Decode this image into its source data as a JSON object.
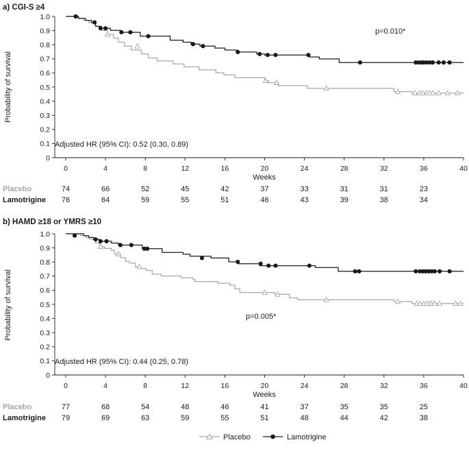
{
  "legend": {
    "placebo": "Placebo",
    "lamotrigine": "Lamotrigine"
  },
  "colors": {
    "placebo": "#a6a6a6",
    "lamotrigine": "#1a1a1a"
  },
  "chart_data": [
    {
      "type": "line",
      "title": "a) CGI-S ≥4",
      "xlabel": "Weeks",
      "ylabel": "Probability of survival",
      "xlim": [
        0,
        40
      ],
      "ylim": [
        0,
        1.0
      ],
      "xticks": [
        0,
        4,
        8,
        12,
        16,
        20,
        24,
        28,
        32,
        36,
        40
      ],
      "yticks": [
        0,
        0.1,
        0.2,
        0.3,
        0.4,
        0.5,
        0.6,
        0.7,
        0.8,
        0.9,
        1.0
      ],
      "ytick_labels": [
        "0",
        "0.1",
        "0.2",
        "0.3",
        "0.4",
        "0.5",
        "0.6",
        "0.7",
        "0.8",
        "0.9",
        "1.0"
      ],
      "annotation_p": "p=0.010*",
      "annotation_hr": "Adjusted HR (95% CI): 0.52 (0.30, 0.89)",
      "series": [
        {
          "name": "Placebo",
          "steps": [
            [
              0,
              1.0
            ],
            [
              1.2,
              0.986
            ],
            [
              1.8,
              0.972
            ],
            [
              2.3,
              0.958
            ],
            [
              3.0,
              0.93
            ],
            [
              3.6,
              0.902
            ],
            [
              4.2,
              0.874
            ],
            [
              4.8,
              0.846
            ],
            [
              5.3,
              0.818
            ],
            [
              5.9,
              0.79
            ],
            [
              6.6,
              0.762
            ],
            [
              7.6,
              0.734
            ],
            [
              8.3,
              0.706
            ],
            [
              9.2,
              0.685
            ],
            [
              10.8,
              0.664
            ],
            [
              11.9,
              0.643
            ],
            [
              13.4,
              0.622
            ],
            [
              15.1,
              0.601
            ],
            [
              15.9,
              0.587
            ],
            [
              17.0,
              0.566
            ],
            [
              20.0,
              0.545
            ],
            [
              20.4,
              0.531
            ],
            [
              21.4,
              0.51
            ],
            [
              22.4,
              0.51
            ],
            [
              24.3,
              0.491
            ],
            [
              25.4,
              0.491
            ],
            [
              33.0,
              0.468
            ],
            [
              34.8,
              0.458
            ],
            [
              40.0,
              0.458
            ]
          ],
          "censored": [
            [
              4.2,
              0.874
            ],
            [
              7.2,
              0.79
            ],
            [
              20.1,
              0.545
            ],
            [
              21.2,
              0.531
            ],
            [
              26.2,
              0.491
            ],
            [
              33.4,
              0.468
            ],
            [
              35.1,
              0.458
            ],
            [
              35.6,
              0.458
            ],
            [
              35.9,
              0.458
            ],
            [
              36.3,
              0.458
            ],
            [
              36.6,
              0.458
            ],
            [
              36.9,
              0.458
            ],
            [
              37.5,
              0.458
            ],
            [
              38.4,
              0.458
            ],
            [
              39.4,
              0.458
            ]
          ]
        },
        {
          "name": "Lamotrigine",
          "steps": [
            [
              0,
              1.0
            ],
            [
              1.1,
              1.0
            ],
            [
              1.3,
              0.986
            ],
            [
              2.0,
              0.972
            ],
            [
              2.6,
              0.958
            ],
            [
              3.0,
              0.93
            ],
            [
              3.5,
              0.916
            ],
            [
              4.5,
              0.902
            ],
            [
              5.5,
              0.888
            ],
            [
              7.5,
              0.86
            ],
            [
              10.5,
              0.832
            ],
            [
              11.8,
              0.818
            ],
            [
              12.6,
              0.804
            ],
            [
              13.5,
              0.79
            ],
            [
              15.0,
              0.776
            ],
            [
              16.0,
              0.762
            ],
            [
              17.2,
              0.748
            ],
            [
              19.2,
              0.734
            ],
            [
              20.0,
              0.727
            ],
            [
              24.5,
              0.713
            ],
            [
              25.5,
              0.699
            ],
            [
              27.5,
              0.674
            ],
            [
              40.0,
              0.674
            ]
          ],
          "censored": [
            [
              1.0,
              1.0
            ],
            [
              2.9,
              0.958
            ],
            [
              3.5,
              0.916
            ],
            [
              4.0,
              0.916
            ],
            [
              5.6,
              0.888
            ],
            [
              6.5,
              0.888
            ],
            [
              8.3,
              0.86
            ],
            [
              12.8,
              0.804
            ],
            [
              13.8,
              0.79
            ],
            [
              17.3,
              0.748
            ],
            [
              19.5,
              0.734
            ],
            [
              20.3,
              0.727
            ],
            [
              21.1,
              0.727
            ],
            [
              24.4,
              0.727
            ],
            [
              29.6,
              0.674
            ],
            [
              35.2,
              0.674
            ],
            [
              35.5,
              0.674
            ],
            [
              35.8,
              0.674
            ],
            [
              36.0,
              0.674
            ],
            [
              36.3,
              0.674
            ],
            [
              36.6,
              0.674
            ],
            [
              36.9,
              0.674
            ],
            [
              37.5,
              0.674
            ],
            [
              38.0,
              0.674
            ],
            [
              38.6,
              0.674
            ]
          ]
        }
      ],
      "risk_table": {
        "times": [
          0,
          4,
          8,
          12,
          16,
          20,
          24,
          28,
          32,
          36
        ],
        "rows": [
          {
            "label": "Placebo",
            "values": [
              "74",
              "66",
              "52",
              "45",
              "42",
              "37",
              "33",
              "31",
              "31",
              "23"
            ]
          },
          {
            "label": "Lamotrigine",
            "values": [
              "76",
              "64",
              "59",
              "55",
              "51",
              "46",
              "43",
              "39",
              "38",
              "34"
            ]
          }
        ]
      }
    },
    {
      "type": "line",
      "title": "b) HAMD ≥18 or YMRS ≥10",
      "xlabel": "Weeks",
      "ylabel": "Probability of survival",
      "xlim": [
        0,
        40
      ],
      "ylim": [
        0,
        1.0
      ],
      "xticks": [
        0,
        4,
        8,
        12,
        16,
        20,
        24,
        28,
        32,
        36,
        40
      ],
      "yticks": [
        0,
        0.1,
        0.2,
        0.3,
        0.4,
        0.5,
        0.6,
        0.7,
        0.8,
        0.9,
        1.0
      ],
      "ytick_labels": [
        "0",
        "0.1",
        "0.2",
        "0.3",
        "0.4",
        "0.5",
        "0.6",
        "0.7",
        "0.8",
        "0.9",
        "1.0"
      ],
      "annotation_p": "p=0.005*",
      "annotation_hr": "Adjusted HR (95% CI): 0.44 (0.25, 0.78)",
      "series": [
        {
          "name": "Placebo",
          "steps": [
            [
              0,
              1.0
            ],
            [
              1.5,
              0.987
            ],
            [
              2.0,
              0.974
            ],
            [
              2.4,
              0.961
            ],
            [
              3.0,
              0.935
            ],
            [
              3.4,
              0.909
            ],
            [
              3.9,
              0.896
            ],
            [
              4.6,
              0.883
            ],
            [
              4.9,
              0.857
            ],
            [
              5.5,
              0.831
            ],
            [
              6.0,
              0.805
            ],
            [
              6.4,
              0.792
            ],
            [
              7.0,
              0.766
            ],
            [
              7.5,
              0.753
            ],
            [
              8.1,
              0.74
            ],
            [
              8.7,
              0.714
            ],
            [
              9.6,
              0.701
            ],
            [
              11.6,
              0.688
            ],
            [
              12.8,
              0.675
            ],
            [
              13.0,
              0.662
            ],
            [
              15.3,
              0.649
            ],
            [
              16.5,
              0.636
            ],
            [
              17.0,
              0.61
            ],
            [
              17.5,
              0.584
            ],
            [
              21.0,
              0.571
            ],
            [
              22.5,
              0.546
            ],
            [
              23.3,
              0.533
            ],
            [
              25.0,
              0.533
            ],
            [
              33.0,
              0.52
            ],
            [
              34.8,
              0.506
            ],
            [
              40.0,
              0.506
            ]
          ],
          "censored": [
            [
              3.5,
              0.909
            ],
            [
              5.3,
              0.857
            ],
            [
              7.4,
              0.766
            ],
            [
              20.0,
              0.584
            ],
            [
              21.3,
              0.571
            ],
            [
              26.2,
              0.533
            ],
            [
              33.4,
              0.52
            ],
            [
              35.3,
              0.506
            ],
            [
              35.6,
              0.506
            ],
            [
              36.0,
              0.506
            ],
            [
              36.3,
              0.506
            ],
            [
              36.6,
              0.506
            ],
            [
              36.8,
              0.506
            ],
            [
              37.1,
              0.506
            ],
            [
              37.6,
              0.506
            ],
            [
              39.2,
              0.506
            ],
            [
              39.7,
              0.506
            ]
          ]
        },
        {
          "name": "Lamotrigine",
          "steps": [
            [
              0,
              1.0
            ],
            [
              1.8,
              0.987
            ],
            [
              2.3,
              0.974
            ],
            [
              2.8,
              0.96
            ],
            [
              3.4,
              0.947
            ],
            [
              4.6,
              0.934
            ],
            [
              5.3,
              0.92
            ],
            [
              7.7,
              0.894
            ],
            [
              9.7,
              0.868
            ],
            [
              11.8,
              0.855
            ],
            [
              12.5,
              0.841
            ],
            [
              14.6,
              0.828
            ],
            [
              16.4,
              0.801
            ],
            [
              17.3,
              0.788
            ],
            [
              19.5,
              0.774
            ],
            [
              24.6,
              0.774
            ],
            [
              25.1,
              0.761
            ],
            [
              27.4,
              0.734
            ],
            [
              40.0,
              0.734
            ]
          ],
          "censored": [
            [
              0.9,
              0.987
            ],
            [
              3.0,
              0.96
            ],
            [
              3.5,
              0.947
            ],
            [
              4.1,
              0.947
            ],
            [
              5.5,
              0.92
            ],
            [
              6.6,
              0.92
            ],
            [
              7.9,
              0.894
            ],
            [
              8.2,
              0.894
            ],
            [
              13.7,
              0.828
            ],
            [
              17.3,
              0.801
            ],
            [
              19.6,
              0.788
            ],
            [
              20.4,
              0.774
            ],
            [
              21.1,
              0.774
            ],
            [
              24.5,
              0.774
            ],
            [
              29.1,
              0.734
            ],
            [
              29.5,
              0.734
            ],
            [
              35.2,
              0.734
            ],
            [
              35.6,
              0.734
            ],
            [
              35.9,
              0.734
            ],
            [
              36.2,
              0.734
            ],
            [
              36.5,
              0.734
            ],
            [
              36.8,
              0.734
            ],
            [
              37.1,
              0.734
            ],
            [
              37.6,
              0.734
            ],
            [
              38.6,
              0.734
            ]
          ]
        }
      ],
      "risk_table": {
        "times": [
          0,
          4,
          8,
          12,
          16,
          20,
          24,
          28,
          32,
          36
        ],
        "rows": [
          {
            "label": "Placebo",
            "values": [
              "77",
              "68",
              "54",
              "48",
              "46",
              "41",
              "37",
              "35",
              "35",
              "25"
            ]
          },
          {
            "label": "Lamotrigine",
            "values": [
              "79",
              "69",
              "63",
              "59",
              "55",
              "51",
              "48",
              "44",
              "42",
              "38"
            ]
          }
        ]
      }
    }
  ]
}
